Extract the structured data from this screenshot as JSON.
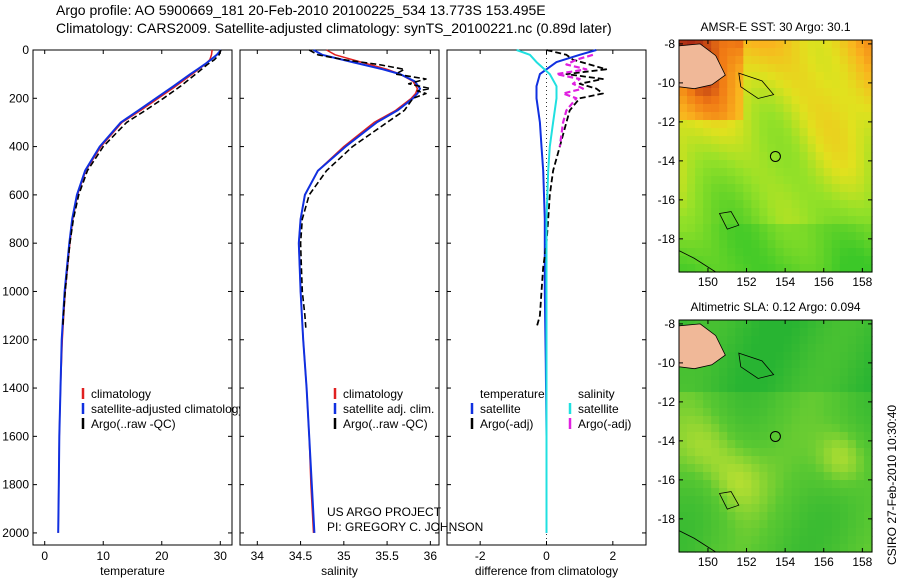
{
  "header": {
    "line1": "Argo profile: AO 5900669_181 20-Feb-2010 20100225_534 13.773S 153.495E",
    "line2": "Climatology: CARS2009. Satellite-adjusted climatology: synTS_20100221.nc (0.89d later)"
  },
  "credit": {
    "line1": "US ARGO PROJECT",
    "line2": "PI: GREGORY C. JOHNSON"
  },
  "timestamp": "CSIRO 27-Feb-2010 10:30:40",
  "colors": {
    "climatology": "#e02020",
    "satellite": "#1030e0",
    "argo": "#000000",
    "salinity_satellite": "#20e0e0",
    "salinity_argo": "#e020e0"
  },
  "chart_data": [
    {
      "type": "line",
      "title": "",
      "xlabel": "temperature",
      "ylabel": "",
      "xlim": [
        -2,
        32
      ],
      "ylim": [
        2050,
        0
      ],
      "xticks": [
        0,
        10,
        20,
        30
      ],
      "yticks": [
        0,
        200,
        400,
        600,
        800,
        1000,
        1200,
        1400,
        1600,
        1800,
        2000
      ],
      "legend": {
        "position": "lower-right",
        "labels": [
          "climatology",
          "satellite-adjusted climatology",
          "Argo(..raw -QC)"
        ]
      },
      "series": [
        {
          "name": "climatology",
          "depth": [
            0,
            20,
            40,
            60,
            80,
            100,
            150,
            200,
            250,
            300,
            400,
            500,
            600,
            700,
            800,
            1000,
            1200,
            1400,
            1600,
            1800,
            2000
          ],
          "values": [
            28.6,
            28.5,
            28.2,
            27.4,
            26.3,
            25.2,
            22.4,
            19.4,
            16.4,
            13.2,
            9.6,
            7.0,
            5.6,
            4.8,
            4.3,
            3.5,
            3.0,
            2.7,
            2.5,
            2.4,
            2.3
          ]
        },
        {
          "name": "satellite-adjusted climatology",
          "depth": [
            0,
            20,
            40,
            60,
            80,
            100,
            150,
            200,
            250,
            300,
            400,
            500,
            600,
            700,
            800,
            1000,
            1200,
            1400,
            1600,
            1800,
            2000
          ],
          "values": [
            30.1,
            29.4,
            28.4,
            27.3,
            26.1,
            24.9,
            22.0,
            19.0,
            16.0,
            13.0,
            9.4,
            6.9,
            5.5,
            4.7,
            4.2,
            3.4,
            2.9,
            2.7,
            2.5,
            2.4,
            2.3
          ]
        },
        {
          "name": "Argo(..raw -QC)",
          "depth": [
            0,
            20,
            40,
            60,
            80,
            100,
            150,
            200,
            250,
            300,
            400,
            500,
            600,
            700,
            800,
            900,
            1000,
            1100,
            1150
          ],
          "values": [
            30.1,
            29.8,
            29.0,
            27.8,
            26.8,
            25.8,
            23.2,
            20.3,
            17.2,
            14.0,
            10.0,
            7.3,
            5.8,
            4.9,
            4.3,
            3.9,
            3.5,
            3.2,
            3.1
          ]
        }
      ]
    },
    {
      "type": "line",
      "title": "",
      "xlabel": "salinity",
      "ylabel": "",
      "xlim": [
        33.8,
        36.1
      ],
      "ylim": [
        2050,
        0
      ],
      "xticks": [
        34,
        34.5,
        35,
        35.5,
        36
      ],
      "legend": {
        "position": "lower-right",
        "labels": [
          "climatology",
          "satellite adj. clim.",
          "Argo(..raw -QC)"
        ]
      },
      "series": [
        {
          "name": "climatology",
          "depth": [
            0,
            20,
            50,
            80,
            100,
            130,
            160,
            180,
            200,
            250,
            300,
            400,
            500,
            600,
            700,
            800,
            1000,
            1200,
            1400,
            1600,
            1800,
            2000
          ],
          "values": [
            34.8,
            34.9,
            35.2,
            35.5,
            35.65,
            35.8,
            35.85,
            35.83,
            35.78,
            35.6,
            35.35,
            35.0,
            34.7,
            34.55,
            34.5,
            34.48,
            34.5,
            34.53,
            34.57,
            34.6,
            34.62,
            34.65
          ]
        },
        {
          "name": "satellite adj. clim.",
          "depth": [
            0,
            20,
            50,
            80,
            100,
            130,
            160,
            180,
            200,
            250,
            300,
            400,
            500,
            600,
            700,
            800,
            1000,
            1200,
            1400,
            1600,
            1800,
            2000
          ],
          "values": [
            34.65,
            34.75,
            35.1,
            35.45,
            35.65,
            35.82,
            35.88,
            35.85,
            35.8,
            35.62,
            35.38,
            35.02,
            34.7,
            34.55,
            34.5,
            34.48,
            34.5,
            34.53,
            34.57,
            34.6,
            34.63,
            34.66
          ]
        },
        {
          "name": "Argo(..raw -QC)",
          "depth": [
            0,
            20,
            40,
            60,
            80,
            100,
            120,
            140,
            160,
            170,
            180,
            200,
            250,
            300,
            400,
            500,
            600,
            700,
            800,
            900,
            1000,
            1100,
            1150
          ],
          "values": [
            34.6,
            34.7,
            35.0,
            35.4,
            35.7,
            35.6,
            35.95,
            35.75,
            36.0,
            35.85,
            35.95,
            35.8,
            35.7,
            35.5,
            35.1,
            34.8,
            34.6,
            34.52,
            34.5,
            34.51,
            34.52,
            34.55,
            34.56
          ]
        }
      ]
    },
    {
      "type": "line",
      "title": "",
      "xlabel": "difference from climatology",
      "ylabel": "",
      "xlim": [
        -3,
        3
      ],
      "ylim": [
        2050,
        0
      ],
      "xticks": [
        -2,
        0,
        2
      ],
      "legend": {
        "position": "lower-center",
        "labels": [
          "temperature",
          "satellite",
          "Argo(-adj)",
          "salinity",
          "satellite",
          "Argo(-adj)"
        ]
      },
      "series": [
        {
          "name": "temperature satellite",
          "depth": [
            0,
            20,
            50,
            100,
            150,
            200,
            300,
            400,
            500,
            700,
            1000,
            1300,
            1600,
            2000
          ],
          "values": [
            1.5,
            1.0,
            0.3,
            -0.2,
            -0.3,
            -0.3,
            -0.2,
            -0.15,
            -0.1,
            -0.05,
            -0.05,
            -0.02,
            0.0,
            0.0
          ]
        },
        {
          "name": "temperature Argo(-adj)",
          "depth": [
            0,
            20,
            40,
            60,
            80,
            100,
            120,
            140,
            160,
            180,
            200,
            250,
            300,
            350,
            400,
            500,
            600,
            700,
            800,
            900,
            1000,
            1100,
            1150
          ],
          "values": [
            0.0,
            0.6,
            0.8,
            1.3,
            1.8,
            0.6,
            1.7,
            1.0,
            1.5,
            1.7,
            1.0,
            0.7,
            0.6,
            0.5,
            0.4,
            0.2,
            0.1,
            0.05,
            0.0,
            -0.1,
            -0.15,
            -0.2,
            -0.3
          ]
        },
        {
          "name": "salinity satellite",
          "depth": [
            0,
            20,
            50,
            100,
            150,
            200,
            300,
            400,
            500,
            700,
            1000,
            1300,
            1600,
            2000
          ],
          "values": [
            -0.9,
            -0.5,
            -0.3,
            0.1,
            0.3,
            0.3,
            0.2,
            0.1,
            0.05,
            0.0,
            0.0,
            0.0,
            0.0,
            0.0
          ]
        },
        {
          "name": "salinity Argo(-adj)",
          "depth": [
            20,
            40,
            60,
            80,
            100,
            120,
            140,
            160,
            180,
            200,
            250,
            300,
            400
          ],
          "values": [
            1.4,
            0.9,
            0.6,
            1.2,
            0.3,
            1.0,
            0.8,
            1.1,
            0.5,
            0.9,
            0.6,
            0.5,
            0.4
          ]
        }
      ]
    },
    {
      "type": "heatmap",
      "title": "AMSR-E SST: 30 Argo: 30.1",
      "xlabel": "",
      "ylabel": "",
      "xlim": [
        148.5,
        158.5
      ],
      "ylim": [
        -19.7,
        -7.8
      ],
      "xticks": [
        150,
        152,
        154,
        156,
        158
      ],
      "yticks": [
        -8,
        -10,
        -12,
        -14,
        -16,
        -18
      ],
      "marker": {
        "lon": 153.495,
        "lat": -13.773
      }
    },
    {
      "type": "heatmap",
      "title": "Altimetric SLA: 0.12 Argo: 0.094",
      "xlabel": "",
      "ylabel": "",
      "xlim": [
        148.5,
        158.5
      ],
      "ylim": [
        -19.7,
        -7.8
      ],
      "xticks": [
        150,
        152,
        154,
        156,
        158
      ],
      "yticks": [
        -8,
        -10,
        -12,
        -14,
        -16,
        -18
      ],
      "marker": {
        "lon": 153.495,
        "lat": -13.773
      }
    }
  ]
}
